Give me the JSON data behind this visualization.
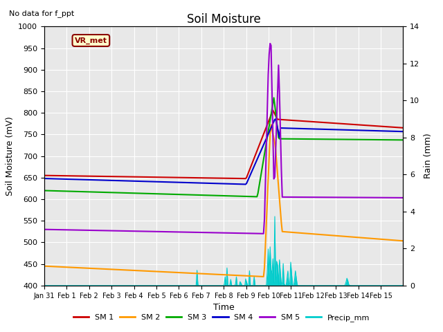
{
  "title": "Soil Moisture",
  "subtitle": "No data for f_ppt",
  "ylabel_left": "Soil Moisture (mV)",
  "ylabel_right": "Rain (mm)",
  "xlabel": "Time",
  "ylim_left": [
    400,
    1000
  ],
  "ylim_right": [
    0,
    14
  ],
  "background_color": "#e8e8e8",
  "legend_label": "VR_met",
  "x_tick_labels": [
    "Jan 31",
    "Feb 1",
    "Feb 2",
    "Feb 3",
    "Feb 4",
    "Feb 5",
    "Feb 6",
    "Feb 7",
    "Feb 8",
    "Feb 9",
    "Feb 10",
    "Feb 11",
    "Feb 12",
    "Feb 13",
    "Feb 14",
    "Feb 15"
  ],
  "series_colors": {
    "SM1": "#cc0000",
    "SM2": "#ff9900",
    "SM3": "#00aa00",
    "SM4": "#0000cc",
    "SM5": "#9900cc",
    "Precip": "#00cccc"
  },
  "yticks_left": [
    400,
    450,
    500,
    550,
    600,
    650,
    700,
    750,
    800,
    850,
    900,
    950,
    1000
  ],
  "yticks_right": [
    0,
    2,
    4,
    6,
    8,
    10,
    12,
    14
  ]
}
